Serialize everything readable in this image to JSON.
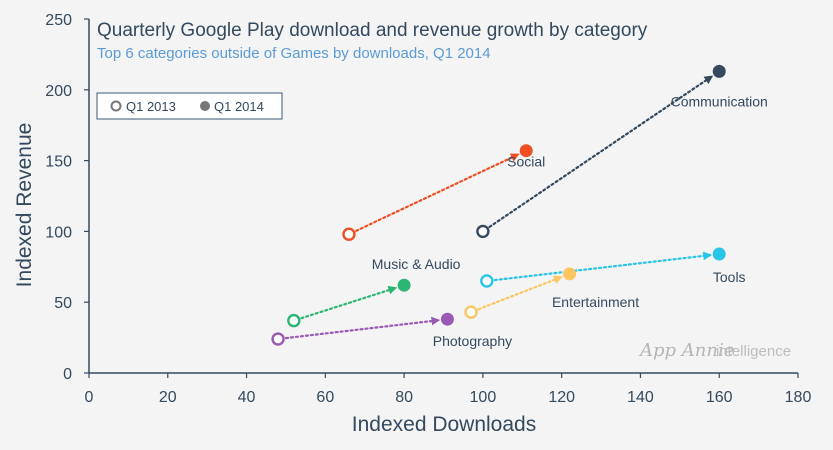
{
  "chart_data": {
    "type": "scatter",
    "title": "Quarterly Google Play download and revenue growth by category",
    "subtitle": "Top 6 categories outside of Games by downloads, Q1 2014",
    "xlabel": "Indexed Downloads",
    "ylabel": "Indexed Revenue",
    "xlim": [
      0,
      180
    ],
    "ylim": [
      0,
      250
    ],
    "x_ticks": [
      0,
      20,
      40,
      60,
      80,
      100,
      120,
      140,
      160,
      180
    ],
    "y_ticks": [
      0,
      50,
      100,
      150,
      200,
      250
    ],
    "grid": false,
    "legend": {
      "placement": "top-left",
      "entries": [
        {
          "label": "Q1 2013",
          "style": "hollow"
        },
        {
          "label": "Q1 2014",
          "style": "filled"
        }
      ]
    },
    "series": [
      {
        "name": "Social",
        "color": "#f04e23",
        "q1_2013": [
          66,
          98
        ],
        "q1_2014": [
          111,
          157
        ]
      },
      {
        "name": "Communication",
        "color": "#34495e",
        "q1_2013": [
          100,
          100
        ],
        "q1_2014": [
          160,
          213
        ]
      },
      {
        "name": "Music & Audio",
        "color": "#2bb673",
        "q1_2013": [
          52,
          37
        ],
        "q1_2014": [
          80,
          62
        ]
      },
      {
        "name": "Photography",
        "color": "#9b59b6",
        "q1_2013": [
          48,
          24
        ],
        "q1_2014": [
          91,
          38
        ]
      },
      {
        "name": "Entertainment",
        "color": "#fbc661",
        "q1_2013": [
          97,
          43
        ],
        "q1_2014": [
          122,
          70
        ]
      },
      {
        "name": "Tools",
        "color": "#29c4e8",
        "q1_2013": [
          101,
          65
        ],
        "q1_2014": [
          160,
          84
        ]
      }
    ]
  },
  "watermark": {
    "brand": "App Annie",
    "suffix": "intelligence"
  }
}
